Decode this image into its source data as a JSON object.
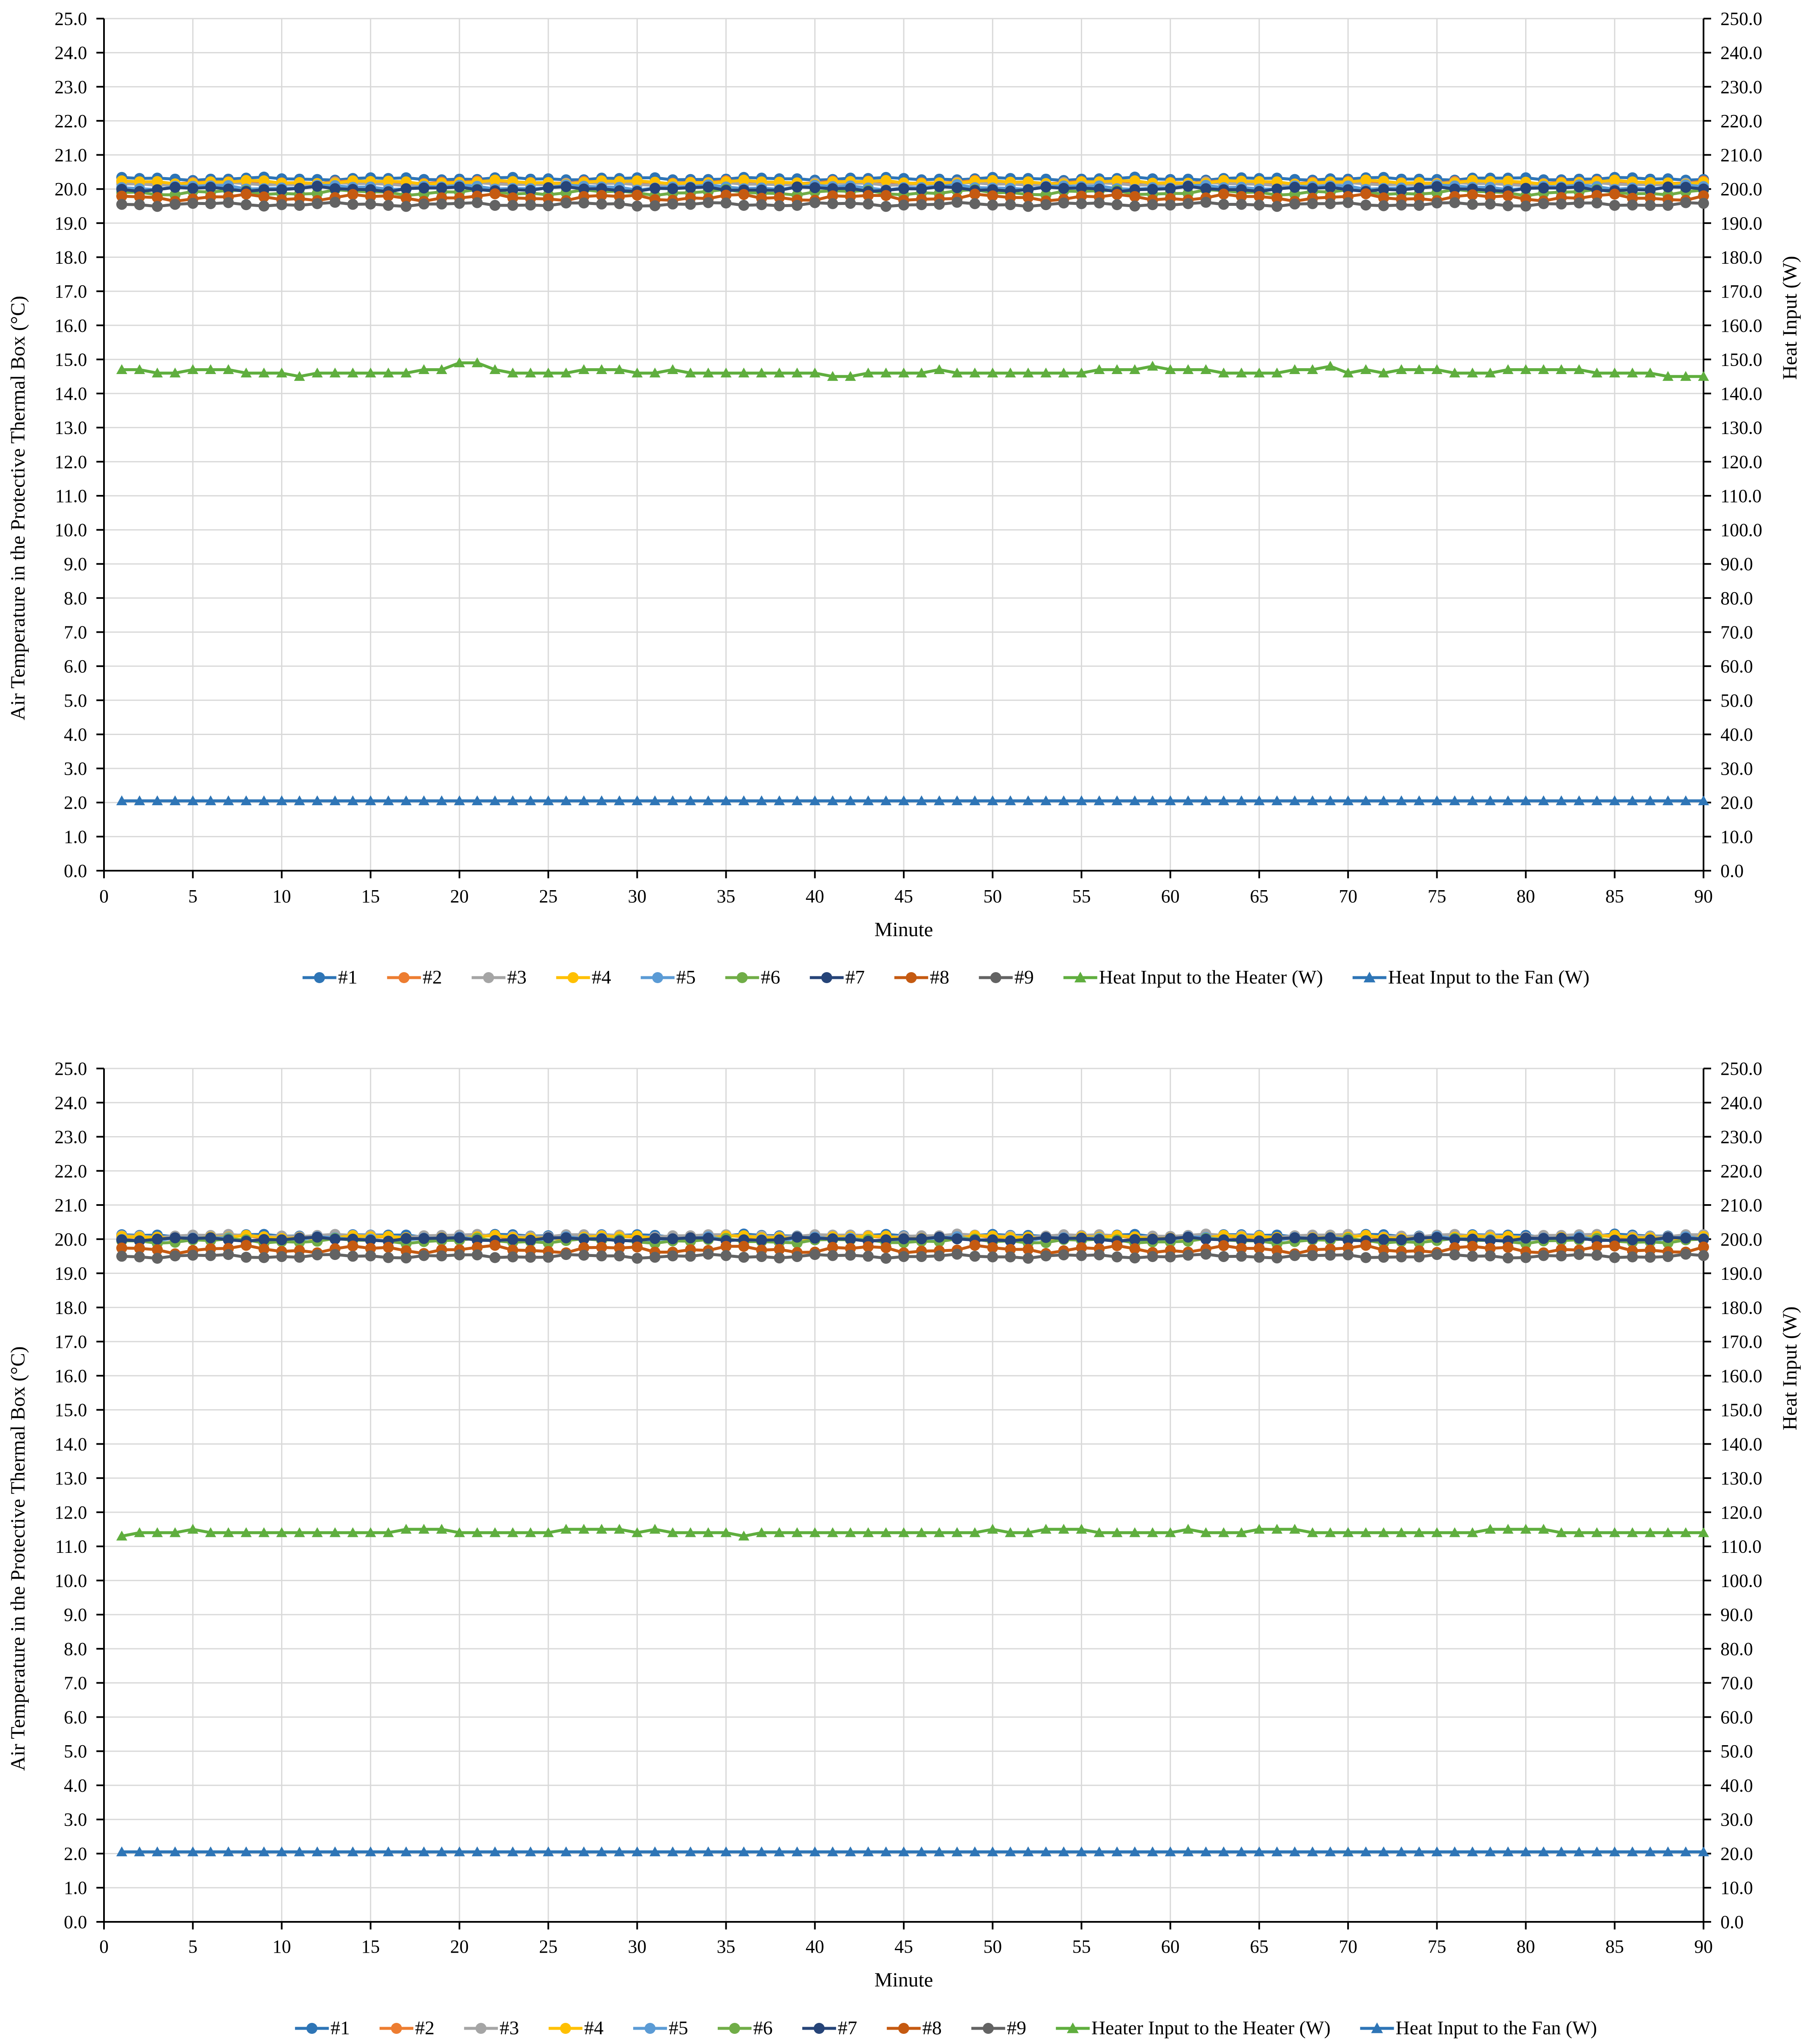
{
  "charts_common": {
    "xlabel": "Minute",
    "ylabel_left": "Air Temperature in the Protective Thermal Box (°C)",
    "ylabel_right": "Heat Input (W)",
    "xlim": [
      0,
      90
    ],
    "ylim_left": [
      0,
      25
    ],
    "ylim_right": [
      0,
      250
    ],
    "x_ticks": [
      0,
      5,
      10,
      15,
      20,
      25,
      30,
      35,
      40,
      45,
      50,
      55,
      60,
      65,
      70,
      75,
      80,
      85,
      90
    ],
    "y_left_ticks": [
      "0.0",
      "1.0",
      "2.0",
      "3.0",
      "4.0",
      "5.0",
      "6.0",
      "7.0",
      "8.0",
      "9.0",
      "10.0",
      "11.0",
      "12.0",
      "13.0",
      "14.0",
      "15.0",
      "16.0",
      "17.0",
      "18.0",
      "19.0",
      "20.0",
      "21.0",
      "22.0",
      "23.0",
      "24.0",
      "25.0"
    ],
    "y_right_ticks": [
      "0.0",
      "10.0",
      "20.0",
      "30.0",
      "40.0",
      "50.0",
      "60.0",
      "70.0",
      "80.0",
      "90.0",
      "100.0",
      "110.0",
      "120.0",
      "130.0",
      "140.0",
      "150.0",
      "160.0",
      "170.0",
      "180.0",
      "190.0",
      "200.0",
      "210.0",
      "220.0",
      "230.0",
      "240.0",
      "250.0"
    ]
  },
  "chart_data": [
    {
      "type": "line",
      "xlabel": "Minute",
      "ylabel": "Air Temperature in the Protective Thermal Box (°C)",
      "y2label": "Heat Input (W)",
      "xlim": [
        0,
        90
      ],
      "ylim": [
        0,
        25
      ],
      "y2lim": [
        0,
        250
      ],
      "grid": true,
      "legend_position": "bottom",
      "x_start": 1,
      "x_end": 90,
      "series": [
        {
          "name": "#1",
          "axis": "left",
          "marker": "circle",
          "color": "#2E75B6",
          "base": 20.3,
          "amp": 0.03,
          "phase": 0.0
        },
        {
          "name": "#2",
          "axis": "left",
          "marker": "circle",
          "color": "#ED7D31",
          "base": 20.2,
          "amp": 0.03,
          "phase": 1.1
        },
        {
          "name": "#3",
          "axis": "left",
          "marker": "circle",
          "color": "#A5A5A5",
          "base": 20.15,
          "amp": 0.03,
          "phase": 2.0
        },
        {
          "name": "#4",
          "axis": "left",
          "marker": "circle",
          "color": "#FFC000",
          "base": 20.2,
          "amp": 0.04,
          "phase": 0.5
        },
        {
          "name": "#5",
          "axis": "left",
          "marker": "circle",
          "color": "#5B9BD5",
          "base": 20.05,
          "amp": 0.05,
          "phase": 2.7
        },
        {
          "name": "#6",
          "axis": "left",
          "marker": "circle",
          "color": "#70AD47",
          "base": 19.9,
          "amp": 0.06,
          "phase": 1.7
        },
        {
          "name": "#7",
          "axis": "left",
          "marker": "circle",
          "color": "#264478",
          "base": 20.0,
          "amp": 0.05,
          "phase": 3.3
        },
        {
          "name": "#8",
          "axis": "left",
          "marker": "circle",
          "color": "#C55A11",
          "base": 19.75,
          "amp": 0.07,
          "phase": 0.9
        },
        {
          "name": "#9",
          "axis": "left",
          "marker": "circle",
          "color": "#636363",
          "base": 19.55,
          "amp": 0.04,
          "phase": 2.3
        },
        {
          "name": "Heat Input to the Heater (W)",
          "axis": "right",
          "marker": "triangle",
          "color": "#5FAE3E",
          "values": [
            147,
            147,
            146,
            146,
            147,
            147,
            147,
            146,
            146,
            146,
            145,
            146,
            146,
            146,
            146,
            146,
            146,
            147,
            147,
            149,
            149,
            147,
            146,
            146,
            146,
            146,
            147,
            147,
            147,
            146,
            146,
            147,
            146,
            146,
            146,
            146,
            146,
            146,
            146,
            146,
            145,
            145,
            146,
            146,
            146,
            146,
            147,
            146,
            146,
            146,
            146,
            146,
            146,
            146,
            146,
            147,
            147,
            147,
            148,
            147,
            147,
            147,
            146,
            146,
            146,
            146,
            147,
            147,
            148,
            146,
            147,
            146,
            147,
            147,
            147,
            146,
            146,
            146,
            147,
            147,
            147,
            147,
            147,
            146,
            146,
            146,
            146,
            145,
            145,
            145
          ]
        },
        {
          "name": "Heat Input to the Fan (W)",
          "axis": "right",
          "marker": "triangle",
          "color": "#2E75B6",
          "constant": 20.5
        }
      ]
    },
    {
      "type": "line",
      "xlabel": "Minute",
      "ylabel": "Air Temperature in the Protective Thermal Box (°C)",
      "y2label": "Heat Input (W)",
      "xlim": [
        0,
        90
      ],
      "ylim": [
        0,
        25
      ],
      "y2lim": [
        0,
        250
      ],
      "grid": true,
      "legend_position": "bottom",
      "x_start": 1,
      "x_end": 90,
      "series": [
        {
          "name": "#1",
          "axis": "left",
          "marker": "circle",
          "color": "#2E75B6",
          "base": 20.1,
          "amp": 0.03,
          "phase": 0.3
        },
        {
          "name": "#2",
          "axis": "left",
          "marker": "circle",
          "color": "#ED7D31",
          "base": 20.05,
          "amp": 0.04,
          "phase": 1.4
        },
        {
          "name": "#3",
          "axis": "left",
          "marker": "circle",
          "color": "#A5A5A5",
          "base": 20.1,
          "amp": 0.03,
          "phase": 2.2
        },
        {
          "name": "#4",
          "axis": "left",
          "marker": "circle",
          "color": "#FFC000",
          "base": 20.05,
          "amp": 0.04,
          "phase": 0.8
        },
        {
          "name": "#5",
          "axis": "left",
          "marker": "circle",
          "color": "#5B9BD5",
          "base": 20.0,
          "amp": 0.05,
          "phase": 2.9
        },
        {
          "name": "#6",
          "axis": "left",
          "marker": "circle",
          "color": "#70AD47",
          "base": 19.95,
          "amp": 0.05,
          "phase": 1.9
        },
        {
          "name": "#7",
          "axis": "left",
          "marker": "circle",
          "color": "#264478",
          "base": 20.0,
          "amp": 0.04,
          "phase": 3.5
        },
        {
          "name": "#8",
          "axis": "left",
          "marker": "circle",
          "color": "#C55A11",
          "base": 19.7,
          "amp": 0.08,
          "phase": 1.0
        },
        {
          "name": "#9",
          "axis": "left",
          "marker": "circle",
          "color": "#636363",
          "base": 19.5,
          "amp": 0.04,
          "phase": 2.5
        },
        {
          "name": "Heater Input to the Heater (W)",
          "axis": "right",
          "marker": "triangle",
          "color": "#5FAE3E",
          "values": [
            113,
            114,
            114,
            114,
            115,
            114,
            114,
            114,
            114,
            114,
            114,
            114,
            114,
            114,
            114,
            114,
            115,
            115,
            115,
            114,
            114,
            114,
            114,
            114,
            114,
            115,
            115,
            115,
            115,
            114,
            115,
            114,
            114,
            114,
            114,
            113,
            114,
            114,
            114,
            114,
            114,
            114,
            114,
            114,
            114,
            114,
            114,
            114,
            114,
            115,
            114,
            114,
            115,
            115,
            115,
            114,
            114,
            114,
            114,
            114,
            115,
            114,
            114,
            114,
            115,
            115,
            115,
            114,
            114,
            114,
            114,
            114,
            114,
            114,
            114,
            114,
            114,
            115,
            115,
            115,
            115,
            114,
            114,
            114,
            114,
            114,
            114,
            114,
            114,
            114
          ]
        },
        {
          "name": "Heat Input to the Fan (W)",
          "axis": "right",
          "marker": "triangle",
          "color": "#2E75B6",
          "constant": 20.5
        }
      ]
    }
  ]
}
